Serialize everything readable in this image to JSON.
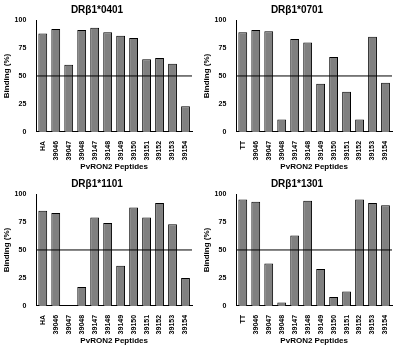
{
  "chart_data": [
    {
      "type": "bar",
      "title": "DRβ1*0401",
      "x_label": "PvRON2 Peptides",
      "y_label": "Binding (%)",
      "categories": [
        "HA",
        "39046",
        "39047",
        "39048",
        "39147",
        "39148",
        "39149",
        "39150",
        "39151",
        "39152",
        "39153",
        "39154"
      ],
      "values": [
        88,
        92,
        60,
        91,
        93,
        89,
        86,
        84,
        65,
        66,
        61,
        23
      ],
      "color": "#808080",
      "ylim": [
        0,
        100
      ],
      "yticks": [
        0,
        25,
        50,
        75,
        100
      ],
      "grid": false,
      "reference_line": 50
    },
    {
      "type": "bar",
      "title": "DRβ1*0701",
      "x_label": "PvRON2 Peptides",
      "y_label": "Binding (%)",
      "categories": [
        "TT",
        "39046",
        "39047",
        "39048",
        "39147",
        "39148",
        "39149",
        "39150",
        "39151",
        "39152",
        "39153",
        "39154"
      ],
      "values": [
        89,
        91,
        90,
        11,
        83,
        80,
        43,
        67,
        36,
        11,
        85,
        44
      ],
      "color": "#808080",
      "ylim": [
        0,
        100
      ],
      "yticks": [
        0,
        25,
        50,
        75,
        100
      ],
      "grid": false,
      "reference_line": 50
    },
    {
      "type": "bar",
      "title": "DRβ1*1101",
      "x_label": "PvRON2 Peptides",
      "y_label": "Binding (%)",
      "categories": [
        "HA",
        "39046",
        "39047",
        "39048",
        "39147",
        "39148",
        "39149",
        "39150",
        "39151",
        "39152",
        "39153",
        "39154"
      ],
      "values": [
        85,
        83,
        0,
        17,
        79,
        74,
        36,
        88,
        79,
        92,
        73,
        25
      ],
      "color": "#808080",
      "ylim": [
        0,
        100
      ],
      "yticks": [
        0,
        25,
        50,
        75,
        100
      ],
      "grid": false,
      "reference_line": 50
    },
    {
      "type": "bar",
      "title": "DRβ1*1301",
      "x_label": "PvRON2 Peptides",
      "y_label": "Binding (%)",
      "categories": [
        "TT",
        "39046",
        "39047",
        "39048",
        "39147",
        "39148",
        "39149",
        "39150",
        "39151",
        "39152",
        "39153",
        "39154"
      ],
      "values": [
        95,
        93,
        38,
        3,
        63,
        94,
        33,
        8,
        13,
        95,
        92,
        90
      ],
      "color": "#808080",
      "ylim": [
        0,
        100
      ],
      "yticks": [
        0,
        25,
        50,
        75,
        100
      ],
      "grid": false,
      "reference_line": 50
    }
  ]
}
